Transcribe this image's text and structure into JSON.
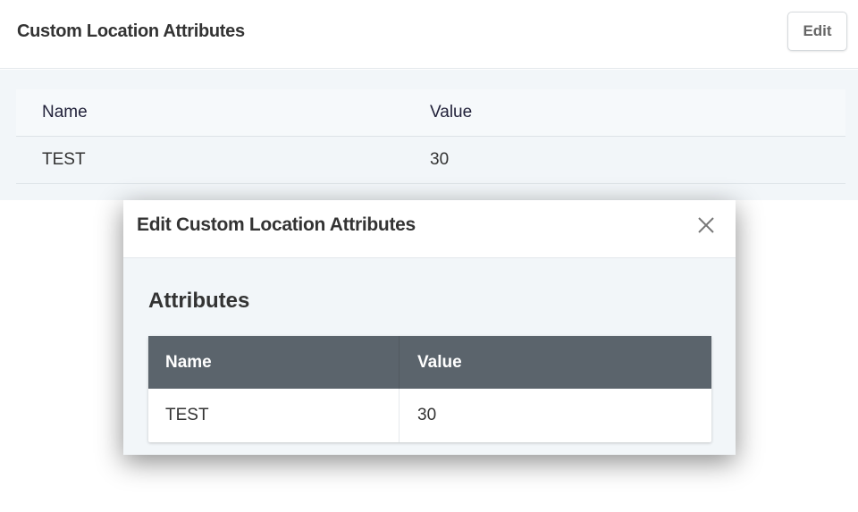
{
  "page": {
    "title": "Custom Location Attributes",
    "edit_label": "Edit",
    "table": {
      "headers": [
        "Name",
        "Value"
      ],
      "rows": [
        [
          "TEST",
          "30"
        ]
      ]
    }
  },
  "modal": {
    "title": "Edit Custom Location Attributes",
    "close_icon": "close-icon",
    "section_title": "Attributes",
    "table": {
      "headers": [
        "Name",
        "Value"
      ],
      "rows": [
        [
          "TEST",
          "30"
        ]
      ]
    }
  },
  "colors": {
    "modal_table_header": "#5b646c",
    "panel_bg": "#f2f6f9"
  }
}
